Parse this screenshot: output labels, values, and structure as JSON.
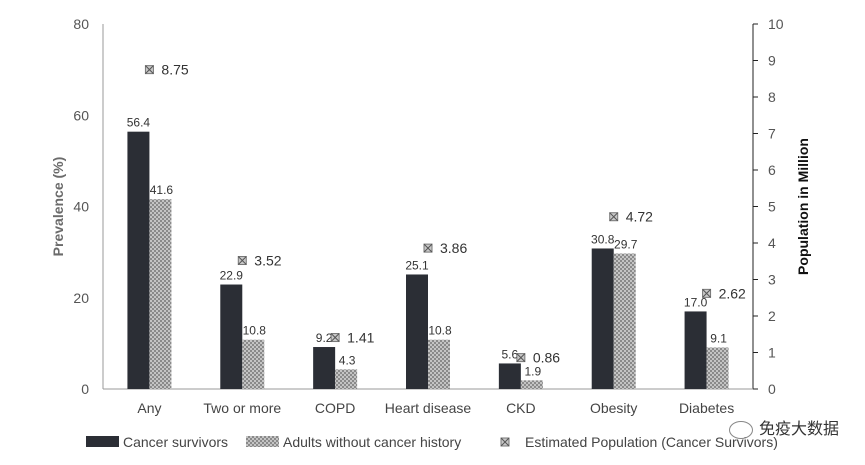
{
  "chart_data": {
    "type": "bar",
    "categories": [
      "Any",
      "Two or more",
      "COPD",
      "Heart disease",
      "CKD",
      "Obesity",
      "Diabetes"
    ],
    "series": [
      {
        "name": "Cancer survivors",
        "axis": "left",
        "values": [
          56.4,
          22.9,
          9.2,
          25.1,
          5.6,
          30.8,
          17.0
        ],
        "labels": [
          "56.4",
          "22.9",
          "9.2",
          "25.1",
          "5.6",
          "30.8",
          "17.0"
        ],
        "color": "#2b2e35"
      },
      {
        "name": "Adults without cancer history",
        "axis": "left",
        "values": [
          41.6,
          10.8,
          4.3,
          10.8,
          1.9,
          29.7,
          9.1
        ],
        "labels": [
          "41.6",
          "10.8",
          "4.3",
          "10.8",
          "1.9",
          "29.7",
          "9.1"
        ],
        "color": "#b0b0b0"
      },
      {
        "name": "Estimated Population (Cancer Survivors)",
        "axis": "right",
        "type": "scatter",
        "values": [
          8.75,
          3.52,
          1.41,
          3.86,
          0.86,
          4.72,
          2.62
        ],
        "labels": [
          "8.75",
          "3.52",
          "1.41",
          "3.86",
          "0.86",
          "4.72",
          "2.62"
        ],
        "color": "#888888"
      }
    ],
    "ylabel": "Prevalence (%)",
    "y2label": "Population in Million",
    "ylim": [
      0,
      80
    ],
    "y2lim": [
      0,
      10
    ],
    "yticks": [
      "0",
      "20",
      "40",
      "60",
      "80"
    ],
    "y2ticks": [
      "0",
      "1",
      "2",
      "3",
      "4",
      "5",
      "6",
      "7",
      "8",
      "9",
      "10"
    ],
    "legend_position": "bottom"
  },
  "watermark": "免疫大数据"
}
